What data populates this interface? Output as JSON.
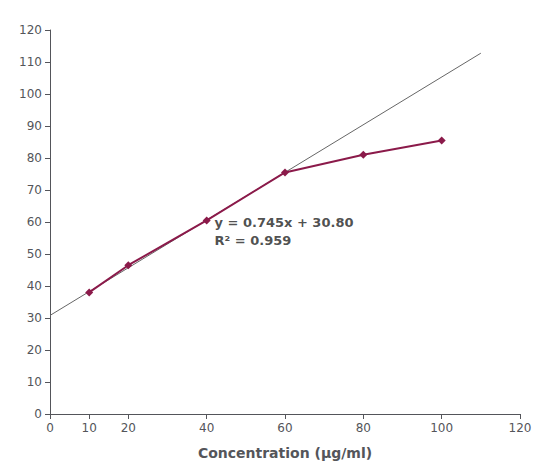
{
  "chart_data": {
    "type": "line",
    "xlabel": "Concentration (μg/ml)",
    "series": [
      {
        "type": "line",
        "x": [
          10,
          20,
          40,
          60,
          80,
          100
        ],
        "values": [
          38.0,
          46.5,
          60.5,
          75.5,
          81.0,
          85.5
        ],
        "color": "#8B1A4A",
        "marker": "diamond",
        "line_style": "solid"
      },
      {
        "type": "line",
        "x": [
          0,
          110
        ],
        "values": [
          30.8,
          112.75
        ],
        "color": "#666666",
        "marker": "none",
        "line_style": "solid"
      }
    ],
    "annotations": [
      {
        "text": "y = 0.745x + 30.80\nR² = 0.959",
        "x": 42,
        "y": 57
      }
    ],
    "xlim": [
      0,
      120
    ],
    "xticks": [
      0,
      10,
      20,
      40,
      60,
      80,
      100,
      120
    ],
    "ylim": [
      0,
      120
    ],
    "yticks": [
      0,
      10,
      20,
      30,
      40,
      50,
      60,
      70,
      80,
      90,
      100,
      110,
      120
    ],
    "grid": false
  }
}
